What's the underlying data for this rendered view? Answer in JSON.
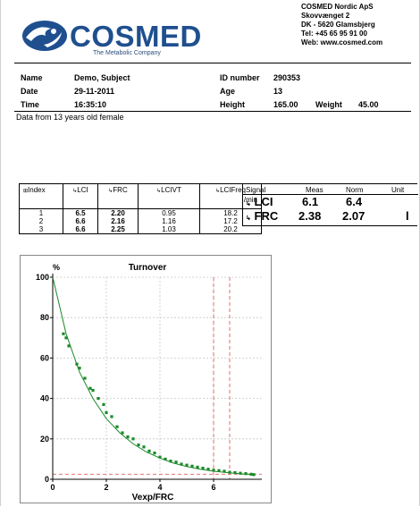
{
  "header": {
    "company_lines": [
      "COSMED Nordic ApS",
      "Skovvænget 2",
      "DK - 5620 Glamsbjerg",
      "Tel: +45 65 95 91 00",
      "Web: www.cosmed.com"
    ],
    "brand": "COSMED",
    "tagline": "The Metabolic Company"
  },
  "patient": {
    "name_label": "Name",
    "name": "Demo, Subject",
    "date_label": "Date",
    "date": "29-11-2011",
    "time_label": "Time",
    "time": "16:35:10",
    "id_label": "ID number",
    "id": "290353",
    "age_label": "Age",
    "age": "13",
    "height_label": "Height",
    "height": "165.00",
    "weight_label": "Weight",
    "weight": "45.00",
    "note": "Data from 13 years old female"
  },
  "index_table": {
    "headers": [
      "Index",
      "LCI",
      "FRC",
      "LCIVT",
      "LCIFreq"
    ],
    "freq_unit": "/min",
    "rows": [
      [
        "1",
        "6.5",
        "2.20",
        "0.95",
        "18.2"
      ],
      [
        "2",
        "6.6",
        "2.16",
        "1.16",
        "17.2"
      ],
      [
        "3",
        "6.6",
        "2.25",
        "1.03",
        "20.2"
      ]
    ]
  },
  "signal_table": {
    "headers": [
      "Signal",
      "Meas",
      "Norm",
      "Unit"
    ],
    "rows": [
      {
        "signal": "LCI",
        "meas": "6.1",
        "norm": "6.4",
        "unit": ""
      },
      {
        "signal": "FRC",
        "meas": "2.38",
        "norm": "2.07",
        "unit": "l"
      }
    ]
  },
  "chart_data": {
    "type": "scatter",
    "title": "Turnover",
    "ylabel": "%",
    "xlabel": "Vexp/FRC",
    "xlim": [
      0,
      7.8
    ],
    "ylim": [
      0,
      100
    ],
    "xticks": [
      0,
      2,
      4,
      6
    ],
    "yticks": [
      0,
      20,
      40,
      60,
      80,
      100
    ],
    "grid": true,
    "colors": {
      "series": "#1a8a2a",
      "reference": "#e06060",
      "grid": "#c8c8c8"
    },
    "reference_lines": {
      "x": [
        0,
        6.0,
        6.6
      ],
      "y": [
        2.5
      ]
    },
    "fit_curve": {
      "x": [
        0,
        0.5,
        1,
        1.5,
        2,
        2.5,
        3,
        3.5,
        4,
        4.5,
        5,
        5.5,
        6,
        6.5,
        7,
        7.5
      ],
      "y": [
        100,
        72,
        53,
        40,
        30,
        23,
        17.5,
        13.5,
        10.5,
        8,
        6.3,
        5,
        4,
        3.3,
        2.7,
        2.3
      ]
    },
    "series": [
      {
        "x": [
          0.4,
          0.5,
          0.6,
          0.9,
          1.0,
          1.2,
          1.4,
          1.5,
          1.7,
          1.9,
          2.0,
          2.2,
          2.4,
          2.6,
          2.8,
          3.0,
          3.2,
          3.4,
          3.6,
          3.8,
          4.0,
          4.2,
          4.4,
          4.6,
          4.8,
          5.0,
          5.2,
          5.4,
          5.6,
          5.8,
          6.0,
          6.2,
          6.4,
          6.6,
          6.8,
          7.0,
          7.2,
          7.4,
          7.5
        ],
        "y": [
          72,
          70,
          66,
          57,
          55,
          50,
          45,
          44,
          40,
          37,
          33,
          31,
          26,
          23,
          21,
          20,
          17,
          16,
          14,
          13,
          11,
          10,
          9,
          8.5,
          7.5,
          7,
          6.5,
          6,
          5.5,
          5,
          4.5,
          4.3,
          4,
          3.5,
          3.3,
          3,
          2.8,
          2.5,
          2.3
        ]
      }
    ]
  }
}
